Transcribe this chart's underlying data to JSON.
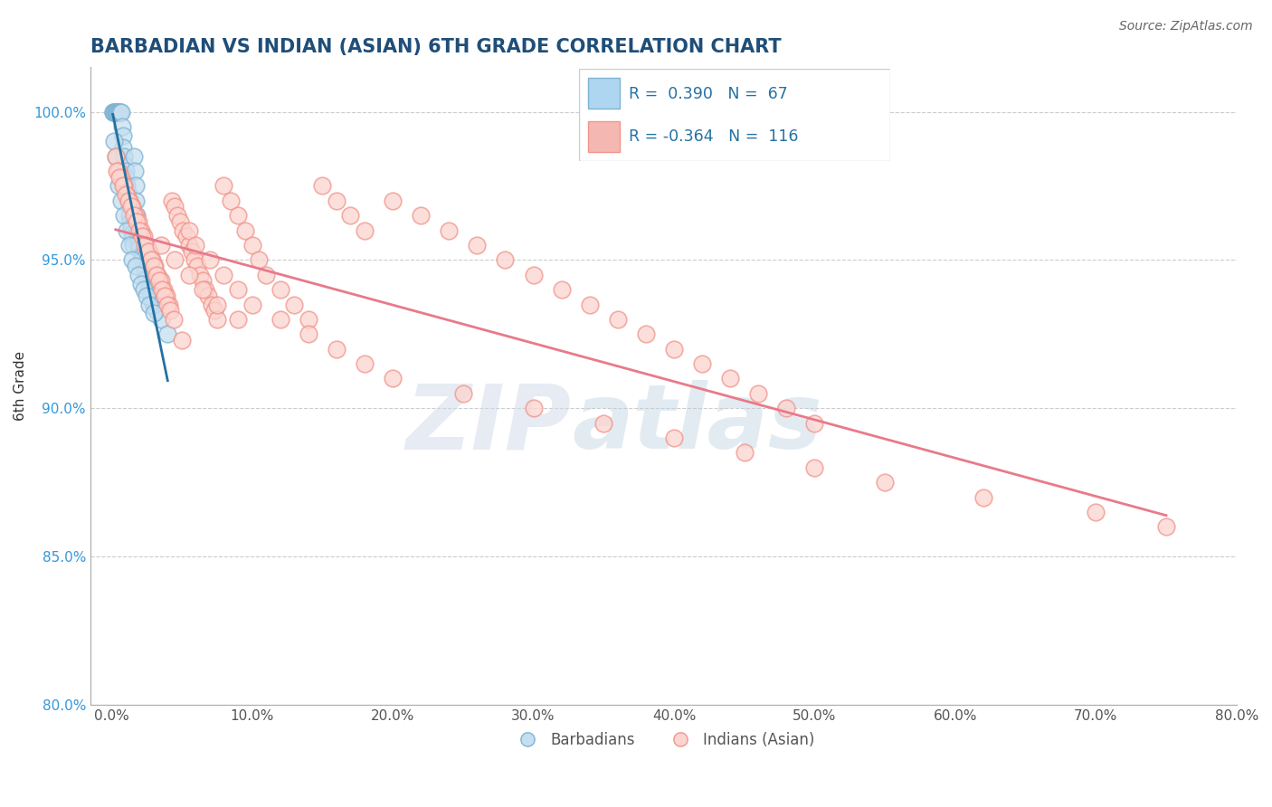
{
  "title": "BARBADIAN VS INDIAN (ASIAN) 6TH GRADE CORRELATION CHART",
  "source_text": "Source: ZipAtlas.com",
  "ylabel": "6th Grade",
  "xlim": [
    -1.5,
    80.0
  ],
  "ylim": [
    80.0,
    101.5
  ],
  "xtick_vals": [
    0.0,
    10.0,
    20.0,
    30.0,
    40.0,
    50.0,
    60.0,
    70.0,
    80.0
  ],
  "ytick_vals": [
    80.0,
    85.0,
    90.0,
    95.0,
    100.0
  ],
  "title_color": "#1f4e79",
  "axis_color": "#aaaaaa",
  "grid_color": "#cccccc",
  "blue_color": "#7fb3d3",
  "pink_color": "#f1948a",
  "blue_line_color": "#2471a3",
  "pink_line_color": "#e87a8a",
  "R_blue": 0.39,
  "N_blue": 67,
  "R_pink": -0.364,
  "N_pink": 116,
  "watermark_zip": "ZIP",
  "watermark_atlas": "atlas",
  "legend_label_blue": "Barbadians",
  "legend_label_pink": "Indians (Asian)",
  "blue_points_x": [
    0.1,
    0.15,
    0.2,
    0.25,
    0.3,
    0.35,
    0.4,
    0.45,
    0.5,
    0.55,
    0.6,
    0.65,
    0.7,
    0.75,
    0.8,
    0.85,
    0.9,
    0.95,
    1.0,
    1.05,
    1.1,
    1.15,
    1.2,
    1.25,
    1.3,
    1.35,
    1.4,
    1.45,
    1.5,
    1.55,
    1.6,
    1.65,
    1.7,
    1.75,
    1.8,
    1.85,
    1.9,
    1.95,
    2.0,
    2.1,
    2.2,
    2.3,
    2.4,
    2.5,
    2.6,
    2.7,
    2.8,
    2.9,
    3.0,
    3.2,
    3.5,
    4.0,
    0.2,
    0.3,
    0.5,
    0.7,
    0.9,
    1.1,
    1.3,
    1.5,
    1.7,
    1.9,
    2.1,
    2.3,
    2.5,
    2.7,
    3.0
  ],
  "blue_points_y": [
    100.0,
    100.0,
    100.0,
    100.0,
    100.0,
    100.0,
    100.0,
    100.0,
    100.0,
    100.0,
    100.0,
    100.0,
    100.0,
    99.5,
    99.2,
    98.8,
    98.5,
    98.2,
    98.0,
    97.8,
    97.5,
    97.3,
    97.0,
    96.8,
    96.5,
    96.3,
    96.1,
    95.9,
    95.7,
    95.5,
    98.5,
    98.0,
    97.5,
    97.0,
    96.5,
    96.0,
    95.8,
    95.6,
    95.4,
    95.2,
    95.0,
    94.8,
    94.6,
    94.4,
    94.2,
    94.0,
    93.8,
    93.6,
    93.5,
    93.3,
    93.0,
    92.5,
    99.0,
    98.5,
    97.5,
    97.0,
    96.5,
    96.0,
    95.5,
    95.0,
    94.8,
    94.5,
    94.2,
    94.0,
    93.8,
    93.5,
    93.2
  ],
  "pink_points_x": [
    0.3,
    0.5,
    0.7,
    0.9,
    1.1,
    1.3,
    1.5,
    1.7,
    1.9,
    2.1,
    2.3,
    2.5,
    2.7,
    2.9,
    3.1,
    3.3,
    3.5,
    3.7,
    3.9,
    4.1,
    4.3,
    4.5,
    4.7,
    4.9,
    5.1,
    5.3,
    5.5,
    5.7,
    5.9,
    6.1,
    6.3,
    6.5,
    6.7,
    6.9,
    7.1,
    7.3,
    7.5,
    8.0,
    8.5,
    9.0,
    9.5,
    10.0,
    10.5,
    11.0,
    12.0,
    13.0,
    14.0,
    15.0,
    16.0,
    17.0,
    18.0,
    20.0,
    22.0,
    24.0,
    26.0,
    28.0,
    30.0,
    32.0,
    34.0,
    36.0,
    38.0,
    40.0,
    42.0,
    44.0,
    46.0,
    48.0,
    50.0,
    0.4,
    0.6,
    0.8,
    1.0,
    1.2,
    1.4,
    1.6,
    1.8,
    2.0,
    2.2,
    2.4,
    2.6,
    2.8,
    3.0,
    3.2,
    3.4,
    3.6,
    3.8,
    4.0,
    4.2,
    4.4,
    5.0,
    5.5,
    6.0,
    7.0,
    8.0,
    9.0,
    10.0,
    12.0,
    14.0,
    16.0,
    18.0,
    20.0,
    25.0,
    30.0,
    35.0,
    40.0,
    45.0,
    50.0,
    55.0,
    62.0,
    70.0,
    75.0,
    3.5,
    4.5,
    5.5,
    6.5,
    7.5,
    9.0
  ],
  "pink_points_y": [
    98.5,
    98.0,
    97.8,
    97.5,
    97.2,
    97.0,
    96.8,
    96.5,
    96.3,
    96.0,
    95.8,
    95.5,
    95.3,
    95.0,
    94.8,
    94.5,
    94.3,
    94.0,
    93.8,
    93.5,
    97.0,
    96.8,
    96.5,
    96.3,
    96.0,
    95.8,
    95.5,
    95.3,
    95.0,
    94.8,
    94.5,
    94.3,
    94.0,
    93.8,
    93.5,
    93.3,
    93.0,
    97.5,
    97.0,
    96.5,
    96.0,
    95.5,
    95.0,
    94.5,
    94.0,
    93.5,
    93.0,
    97.5,
    97.0,
    96.5,
    96.0,
    97.0,
    96.5,
    96.0,
    95.5,
    95.0,
    94.5,
    94.0,
    93.5,
    93.0,
    92.5,
    92.0,
    91.5,
    91.0,
    90.5,
    90.0,
    89.5,
    98.0,
    97.8,
    97.5,
    97.2,
    97.0,
    96.8,
    96.5,
    96.3,
    96.0,
    95.8,
    95.5,
    95.3,
    95.0,
    94.8,
    94.5,
    94.3,
    94.0,
    93.8,
    93.5,
    93.3,
    93.0,
    92.3,
    96.0,
    95.5,
    95.0,
    94.5,
    94.0,
    93.5,
    93.0,
    92.5,
    92.0,
    91.5,
    91.0,
    90.5,
    90.0,
    89.5,
    89.0,
    88.5,
    88.0,
    87.5,
    87.0,
    86.5,
    86.0,
    95.5,
    95.0,
    94.5,
    94.0,
    93.5,
    93.0
  ]
}
